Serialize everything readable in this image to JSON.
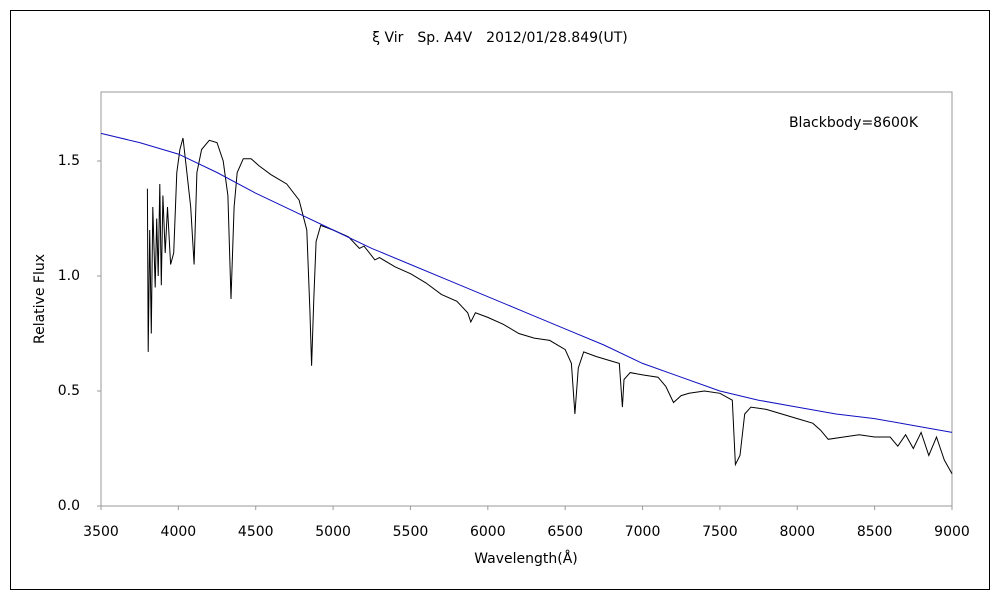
{
  "chart_data": {
    "type": "line",
    "title": "ξ Vir　Sp. A4V　2012/01/28.849(UT)",
    "xlabel": "Wavelength(Å)",
    "ylabel": "Relative Flux",
    "annotation": "Blackbody=8600K",
    "annotation_color": "#1010c0",
    "xlim": [
      3500,
      9000
    ],
    "xticks": [
      3500,
      4000,
      4500,
      5000,
      5500,
      6000,
      6500,
      7000,
      7500,
      8000,
      8500,
      9000
    ],
    "ylim": [
      0,
      1.8
    ],
    "yticks": [
      {
        "value": 0,
        "label": "0.0"
      },
      0.5,
      {
        "value": 1,
        "label": "1.0"
      },
      1.5
    ],
    "grid": false,
    "series": [
      {
        "color": "#000000",
        "x": [
          3800,
          3805,
          3815,
          3825,
          3835,
          3850,
          3860,
          3870,
          3880,
          3890,
          3900,
          3915,
          3930,
          3950,
          3970,
          3990,
          4010,
          4030,
          4050,
          4080,
          4102,
          4120,
          4150,
          4200,
          4250,
          4290,
          4320,
          4340,
          4360,
          4380,
          4420,
          4470,
          4520,
          4600,
          4700,
          4780,
          4830,
          4850,
          4861,
          4875,
          4890,
          4920,
          5000,
          5100,
          5170,
          5200,
          5270,
          5300,
          5400,
          5500,
          5600,
          5700,
          5800,
          5870,
          5890,
          5920,
          6000,
          6100,
          6200,
          6300,
          6400,
          6500,
          6540,
          6563,
          6585,
          6620,
          6700,
          6800,
          6850,
          6870,
          6880,
          6920,
          7000,
          7100,
          7150,
          7200,
          7250,
          7300,
          7400,
          7500,
          7580,
          7600,
          7630,
          7660,
          7700,
          7800,
          7900,
          8000,
          8100,
          8150,
          8200,
          8300,
          8400,
          8500,
          8600,
          8650,
          8700,
          8750,
          8800,
          8850,
          8900,
          8950,
          9000
        ],
        "values": [
          1.38,
          0.67,
          1.2,
          0.75,
          1.3,
          0.95,
          1.25,
          1.0,
          1.4,
          0.96,
          1.35,
          1.1,
          1.3,
          1.05,
          1.1,
          1.45,
          1.55,
          1.6,
          1.48,
          1.3,
          1.05,
          1.45,
          1.55,
          1.59,
          1.58,
          1.5,
          1.35,
          0.9,
          1.3,
          1.45,
          1.51,
          1.51,
          1.48,
          1.44,
          1.4,
          1.33,
          1.2,
          0.85,
          0.61,
          0.9,
          1.15,
          1.22,
          1.2,
          1.17,
          1.12,
          1.13,
          1.07,
          1.08,
          1.04,
          1.01,
          0.97,
          0.92,
          0.89,
          0.84,
          0.8,
          0.84,
          0.82,
          0.79,
          0.75,
          0.73,
          0.72,
          0.68,
          0.62,
          0.4,
          0.6,
          0.67,
          0.65,
          0.63,
          0.62,
          0.43,
          0.55,
          0.58,
          0.57,
          0.56,
          0.52,
          0.45,
          0.48,
          0.49,
          0.5,
          0.49,
          0.46,
          0.18,
          0.22,
          0.4,
          0.43,
          0.42,
          0.4,
          0.38,
          0.36,
          0.33,
          0.29,
          0.3,
          0.31,
          0.3,
          0.3,
          0.26,
          0.31,
          0.25,
          0.32,
          0.22,
          0.3,
          0.2,
          0.14
        ]
      },
      {
        "color": "#1010c0",
        "x": [
          3500,
          3750,
          4000,
          4250,
          4500,
          4750,
          5000,
          5250,
          5500,
          5750,
          6000,
          6250,
          6500,
          6750,
          7000,
          7250,
          7500,
          7750,
          8000,
          8250,
          8500,
          8750,
          9000
        ],
        "values": [
          1.62,
          1.58,
          1.53,
          1.45,
          1.36,
          1.28,
          1.2,
          1.12,
          1.05,
          0.98,
          0.91,
          0.84,
          0.77,
          0.7,
          0.62,
          0.56,
          0.5,
          0.46,
          0.43,
          0.4,
          0.38,
          0.35,
          0.32
        ]
      }
    ]
  }
}
